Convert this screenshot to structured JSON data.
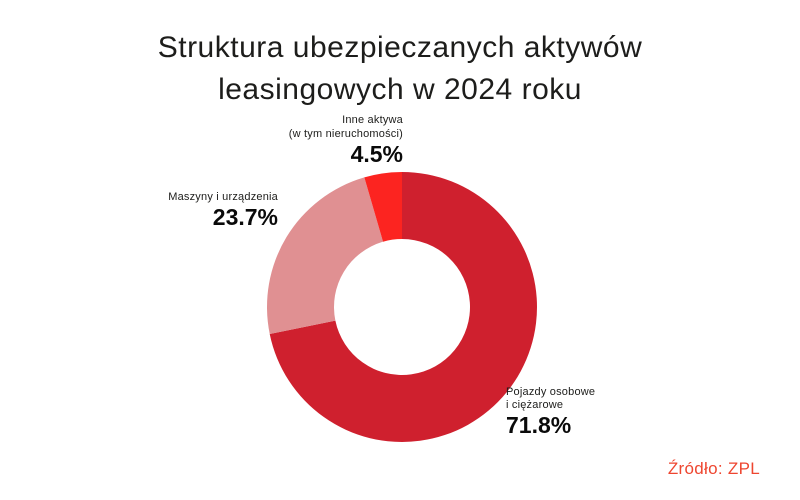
{
  "title": {
    "line1": "Struktura ubezpieczanych aktywów",
    "line2": "leasingowych w 2024 roku"
  },
  "source": {
    "label": "Źródło: ZPL",
    "color": "#ee4630"
  },
  "colors": {
    "title_text": "#1d1d1b",
    "percent_text": "#0a0a0a",
    "background": "#ffffff"
  },
  "chart_data": {
    "type": "pie",
    "subtype": "donut",
    "title": "Struktura ubezpieczanych aktywów leasingowych w 2024 roku",
    "start_angle": "top",
    "direction": "clockwise",
    "inner_radius_ratio": 0.5,
    "legend": "none",
    "segments": [
      {
        "name": "Pojazdy osobowe i ciężarowe",
        "label_lines": [
          "Pojazdy osobowe",
          "i ciężarowe"
        ],
        "value_pct": 71.8,
        "value_label": "71.8%",
        "color": "#cf202e"
      },
      {
        "name": "Maszyny i urządzenia",
        "label_lines": [
          "Maszyny i urządzenia"
        ],
        "value_pct": 23.7,
        "value_label": "23.7%",
        "color": "#e09092"
      },
      {
        "name": "Inne aktywa (w tym nieruchomości)",
        "label_lines": [
          "Inne aktywa",
          "(w tym nieruchomości)"
        ],
        "value_pct": 4.5,
        "value_label": "4.5%",
        "color": "#fc2420"
      }
    ]
  }
}
